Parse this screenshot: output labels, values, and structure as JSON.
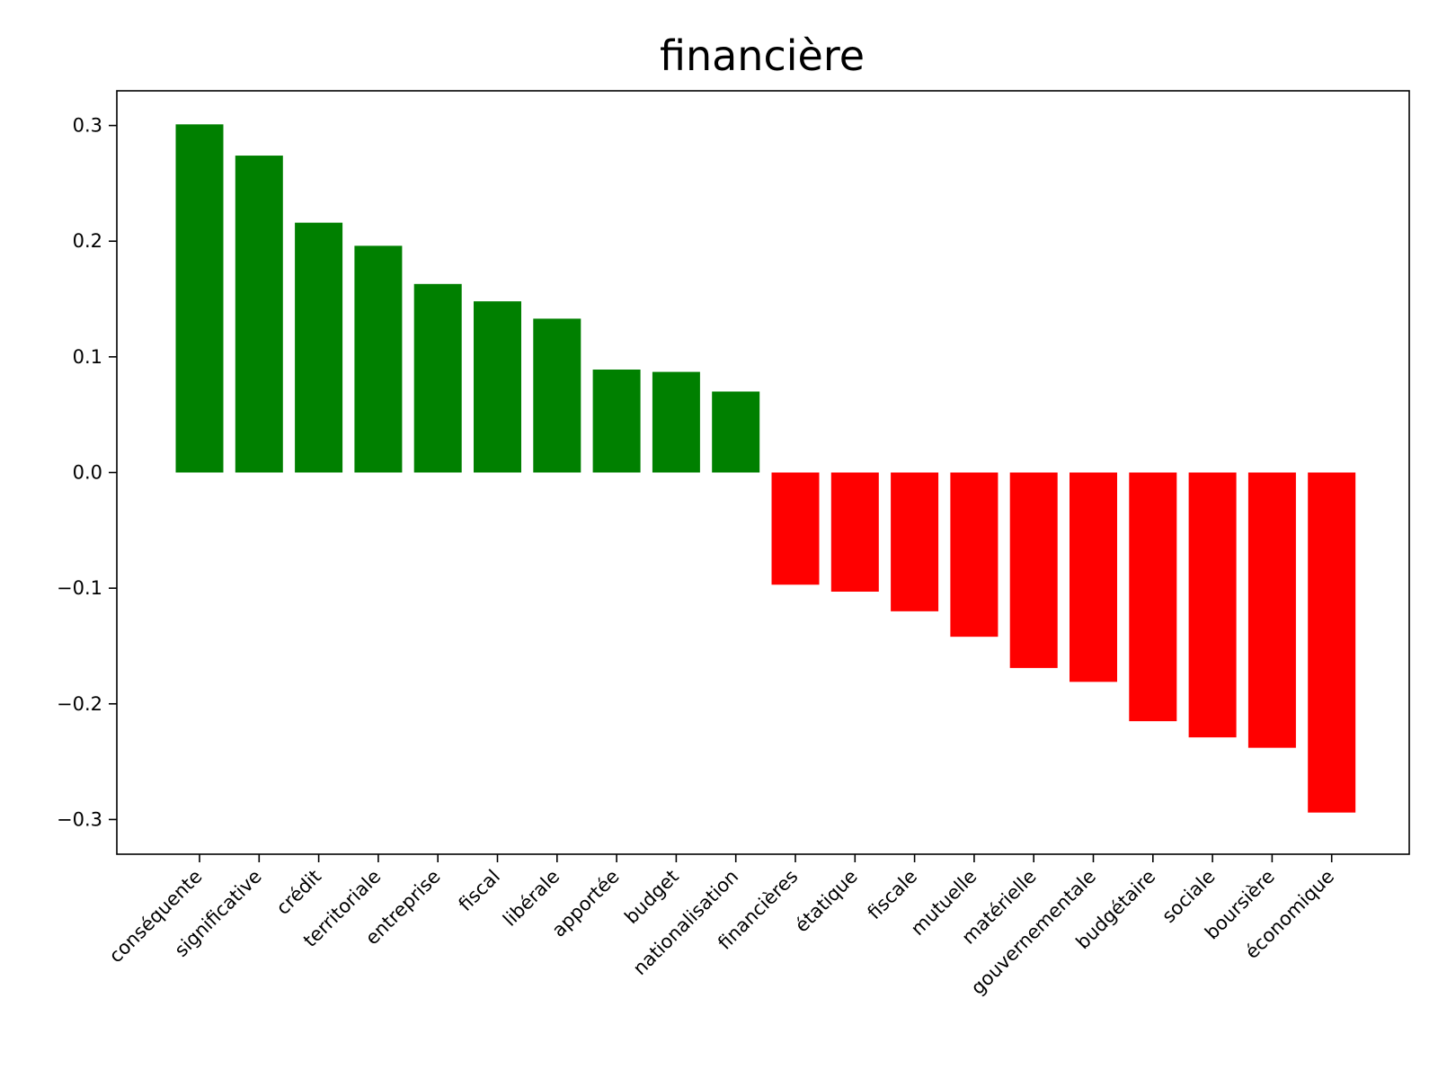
{
  "chart_data": {
    "type": "bar",
    "title": "financière",
    "xlabel": "",
    "ylabel": "",
    "ylim": [
      -0.33,
      0.33
    ],
    "yticks": [
      0.3,
      0.2,
      0.1,
      0.0,
      -0.1,
      -0.2,
      -0.3
    ],
    "ytick_labels": [
      "0.3",
      "0.2",
      "0.1",
      "0.0",
      "−0.1",
      "−0.2",
      "−0.3"
    ],
    "grid": false,
    "categories": [
      "conséquente",
      "significative",
      "crédit",
      "territoriale",
      "entreprise",
      "fiscal",
      "libérale",
      "apportée",
      "budget",
      "nationalisation",
      "financières",
      "étatique",
      "fiscale",
      "mutuelle",
      "matérielle",
      "gouvernementale",
      "budgétaire",
      "sociale",
      "boursière",
      "économique"
    ],
    "values": [
      0.301,
      0.274,
      0.216,
      0.196,
      0.163,
      0.148,
      0.133,
      0.089,
      0.087,
      0.07,
      -0.097,
      -0.103,
      -0.12,
      -0.142,
      -0.169,
      -0.181,
      -0.215,
      -0.229,
      -0.238,
      -0.294
    ],
    "colors": {
      "positive": "#008000",
      "negative": "#ff0000",
      "axis": "#000000"
    }
  }
}
